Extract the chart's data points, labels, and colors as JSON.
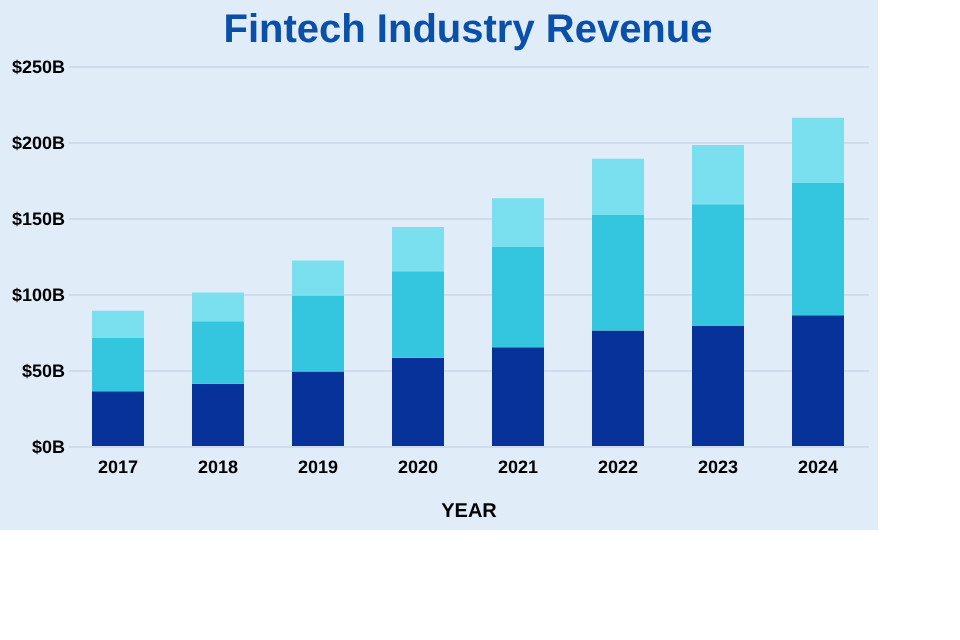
{
  "chart_data": {
    "type": "bar",
    "title": "Fintech Industry Revenue",
    "xlabel": "YEAR",
    "stacked": true,
    "grid": "y",
    "categories": [
      "2017",
      "2018",
      "2019",
      "2020",
      "2021",
      "2022",
      "2023",
      "2024"
    ],
    "series": [
      {
        "color": "#06329a",
        "values": [
          36,
          41,
          49,
          58,
          65,
          76,
          79,
          86
        ]
      },
      {
        "color": "#33c6de",
        "values": [
          35,
          41,
          50,
          57,
          66,
          76,
          80,
          87
        ]
      },
      {
        "color": "#7ae0f0",
        "values": [
          18,
          19,
          23,
          29,
          32,
          37,
          39,
          43
        ]
      }
    ],
    "ylim": [
      0,
      250
    ],
    "yticks": [
      {
        "value": 0,
        "label": "$0B"
      },
      {
        "value": 50,
        "label": "$50B"
      },
      {
        "value": 100,
        "label": "$100B"
      },
      {
        "value": 150,
        "label": "$150B"
      },
      {
        "value": 200,
        "label": "$200B"
      },
      {
        "value": 250,
        "label": "$250B"
      }
    ]
  }
}
